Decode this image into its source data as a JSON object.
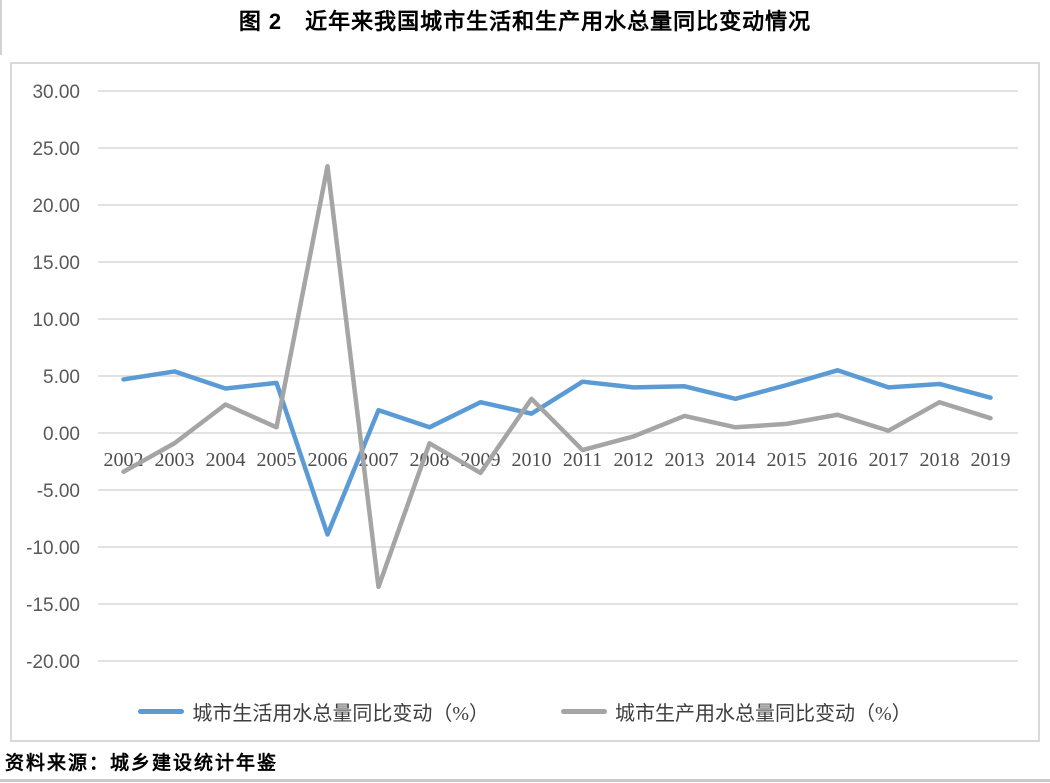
{
  "page": {
    "title": "图 2　近年来我国城市生活和生产用水总量同比变动情况",
    "source_note": "资料来源：城乡建设统计年鉴"
  },
  "chart_data": {
    "type": "line",
    "title": "图 2 近年来我国城市生活和生产用水总量同比变动情况",
    "categories": [
      "2002",
      "2003",
      "2004",
      "2005",
      "2006",
      "2007",
      "2008",
      "2009",
      "2010",
      "2011",
      "2012",
      "2013",
      "2014",
      "2015",
      "2016",
      "2017",
      "2018",
      "2019"
    ],
    "series": [
      {
        "name": "城市生活用水总量同比变动（%）",
        "color": "#5B9BD5",
        "values": [
          4.7,
          5.4,
          3.9,
          4.4,
          -8.9,
          2.0,
          0.5,
          2.7,
          1.7,
          4.5,
          4.0,
          4.1,
          3.0,
          4.2,
          5.5,
          4.0,
          4.3,
          3.1
        ]
      },
      {
        "name": "城市生产用水总量同比变动（%）",
        "color": "#A5A5A5",
        "values": [
          -3.4,
          -0.9,
          2.5,
          0.5,
          23.4,
          -13.5,
          -0.9,
          -3.5,
          3.0,
          -1.5,
          -0.3,
          1.5,
          0.5,
          0.8,
          1.6,
          0.2,
          2.7,
          1.3
        ]
      }
    ],
    "xlabel": "",
    "ylabel": "",
    "ylim": [
      -20,
      30
    ],
    "ytick_step": 5,
    "ytick_labels": [
      "30.00",
      "25.00",
      "20.00",
      "15.00",
      "10.00",
      "5.00",
      "0.00",
      "-5.00",
      "-10.00",
      "-15.00",
      "-20.00"
    ],
    "grid": true,
    "gridline_color": "#D9D9D9",
    "legend_position": "bottom"
  }
}
